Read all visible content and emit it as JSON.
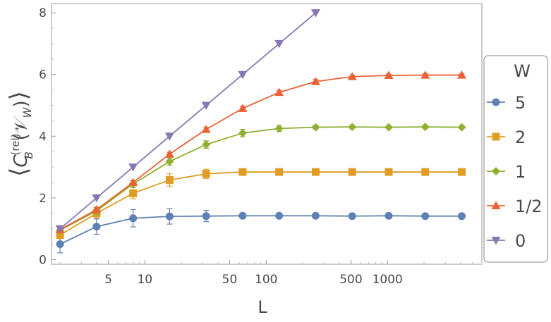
{
  "chart_data": {
    "type": "line",
    "xlabel": "L",
    "ylabel_parts": {
      "c": "C",
      "sup": "(rel)",
      "sub": "B",
      "v": "𝒱",
      "vsub": "W"
    },
    "x_scale": "log",
    "x_ticks": [
      5,
      10,
      50,
      100,
      500,
      1000
    ],
    "x_tick_labels": [
      "5",
      "10",
      "50",
      "100",
      "500",
      "1000"
    ],
    "y_ticks": [
      0,
      2,
      4,
      6,
      8
    ],
    "y_tick_labels": [
      "0",
      "2",
      "4",
      "6",
      "8"
    ],
    "xlim": [
      1.7,
      6000
    ],
    "ylim": [
      -0.15,
      8.3
    ],
    "grid": false,
    "legend_placement": "right",
    "legend_title": "W",
    "x": [
      2,
      4,
      8,
      16,
      32,
      64,
      128,
      256,
      512,
      1024,
      2048,
      4096
    ],
    "series": [
      {
        "name": "5",
        "color": "#5e81b5",
        "marker": "circle",
        "values": [
          0.5,
          1.07,
          1.34,
          1.4,
          1.41,
          1.42,
          1.42,
          1.42,
          1.41,
          1.42,
          1.41,
          1.41
        ],
        "errors": [
          0.28,
          0.25,
          0.28,
          0.25,
          0.18,
          0.08,
          0.05,
          0.04,
          0.03,
          0.02,
          0.02,
          0.02
        ]
      },
      {
        "name": "2",
        "color": "#e19c24",
        "marker": "square",
        "values": [
          0.8,
          1.5,
          2.15,
          2.58,
          2.78,
          2.84,
          2.84,
          2.84,
          2.84,
          2.84,
          2.84,
          2.84
        ],
        "errors": [
          0.12,
          0.15,
          0.18,
          0.2,
          0.15,
          0.1,
          0.06,
          0.04,
          0.03,
          0.02,
          0.02,
          0.02
        ]
      },
      {
        "name": "1",
        "color": "#8fb032",
        "marker": "diamond",
        "values": [
          0.95,
          1.58,
          2.45,
          3.18,
          3.73,
          4.1,
          4.25,
          4.29,
          4.3,
          4.29,
          4.3,
          4.29
        ],
        "errors": [
          0.08,
          0.12,
          0.12,
          0.12,
          0.12,
          0.12,
          0.1,
          0.06,
          0.04,
          0.03,
          0.03,
          0.03
        ]
      },
      {
        "name": "1/2",
        "color": "#eb6235",
        "marker": "triangle-up",
        "values": [
          0.97,
          1.62,
          2.5,
          3.42,
          4.22,
          4.9,
          5.42,
          5.77,
          5.93,
          5.97,
          5.98,
          5.98
        ],
        "errors": [
          0.05,
          0.06,
          0.06,
          0.06,
          0.06,
          0.07,
          0.07,
          0.07,
          0.05,
          0.04,
          0.04,
          0.04
        ]
      },
      {
        "name": "0",
        "color": "#8778b3",
        "marker": "triangle-down",
        "x": [
          2,
          4,
          8,
          16,
          32,
          64,
          128,
          256
        ],
        "values": [
          1,
          2,
          3,
          4,
          5,
          6,
          7,
          8
        ],
        "errors": [
          0,
          0,
          0,
          0,
          0,
          0,
          0,
          0
        ]
      }
    ]
  }
}
